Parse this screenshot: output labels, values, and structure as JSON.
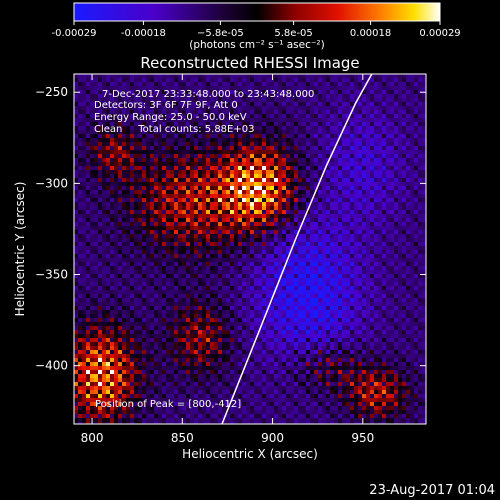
{
  "chart_data": {
    "type": "heatmap",
    "title": "Reconstructed RHESSI Image",
    "xlabel": "Heliocentric X (arcsec)",
    "ylabel": "Heliocentric Y (arcsec)",
    "xlim": [
      790,
      985
    ],
    "ylim": [
      -432,
      -240
    ],
    "x_ticks": [
      800,
      850,
      900,
      950
    ],
    "y_ticks": [
      -250,
      -300,
      -350,
      -400
    ],
    "x_tick_labels": [
      "800",
      "850",
      "900",
      "950"
    ],
    "y_tick_labels": [
      "−250",
      "−300",
      "−350",
      "−400"
    ],
    "colorbar": {
      "min": -0.00029,
      "max": 0.00029,
      "ticks": [
        -0.00029,
        -0.00018,
        -5.8e-05,
        5.8e-05,
        0.00018,
        0.00029
      ],
      "tick_labels": [
        "-0.00029",
        "-0.00018",
        "−5.8e-05",
        "5.8e-05",
        "0.00018",
        "0.00029"
      ],
      "unit_label": "(photons cm⁻² s⁻¹ asec⁻²)",
      "colormap": "rhessi-blue-black-red-yellow-white"
    },
    "annotations": [
      "7-Dec-2017 23:33:48.000 to 23:43:48.000",
      "Detectors: 3F 6F 7F 9F, Att 0",
      "Energy Range: 25.0 - 50.0 keV",
      "Clean     Total counts: 5.88E+03"
    ],
    "peak_label": "Position of Peak = [800,-412]",
    "peak": [
      800,
      -412
    ],
    "limb_curve": [
      [
        872,
        -432
      ],
      [
        893,
        -380
      ],
      [
        913,
        -330
      ],
      [
        930,
        -290
      ],
      [
        946,
        -256
      ],
      [
        955,
        -240
      ]
    ],
    "bright_sources": [
      {
        "x": 855,
        "y": -310,
        "sx": 24,
        "sy": 20,
        "amp": 0.55
      },
      {
        "x": 893,
        "y": -302,
        "sx": 14,
        "sy": 16,
        "amp": 0.85
      },
      {
        "x": 812,
        "y": -283,
        "sx": 10,
        "sy": 10,
        "amp": 0.4
      },
      {
        "x": 805,
        "y": -405,
        "sx": 14,
        "sy": 18,
        "amp": 0.85
      },
      {
        "x": 860,
        "y": -385,
        "sx": 12,
        "sy": 14,
        "amp": 0.45
      },
      {
        "x": 958,
        "y": -415,
        "sx": 12,
        "sy": 10,
        "amp": 0.55
      },
      {
        "x": 930,
        "y": -400,
        "sx": 14,
        "sy": 10,
        "amp": 0.35
      }
    ],
    "dark_regions": [
      {
        "x": 920,
        "y": -360,
        "sx": 20,
        "sy": 26,
        "amp": -0.6
      },
      {
        "x": 950,
        "y": -290,
        "sx": 16,
        "sy": 22,
        "amp": -0.3
      }
    ]
  },
  "footer": {
    "timestamp": "23-Aug-2017 01:04"
  }
}
